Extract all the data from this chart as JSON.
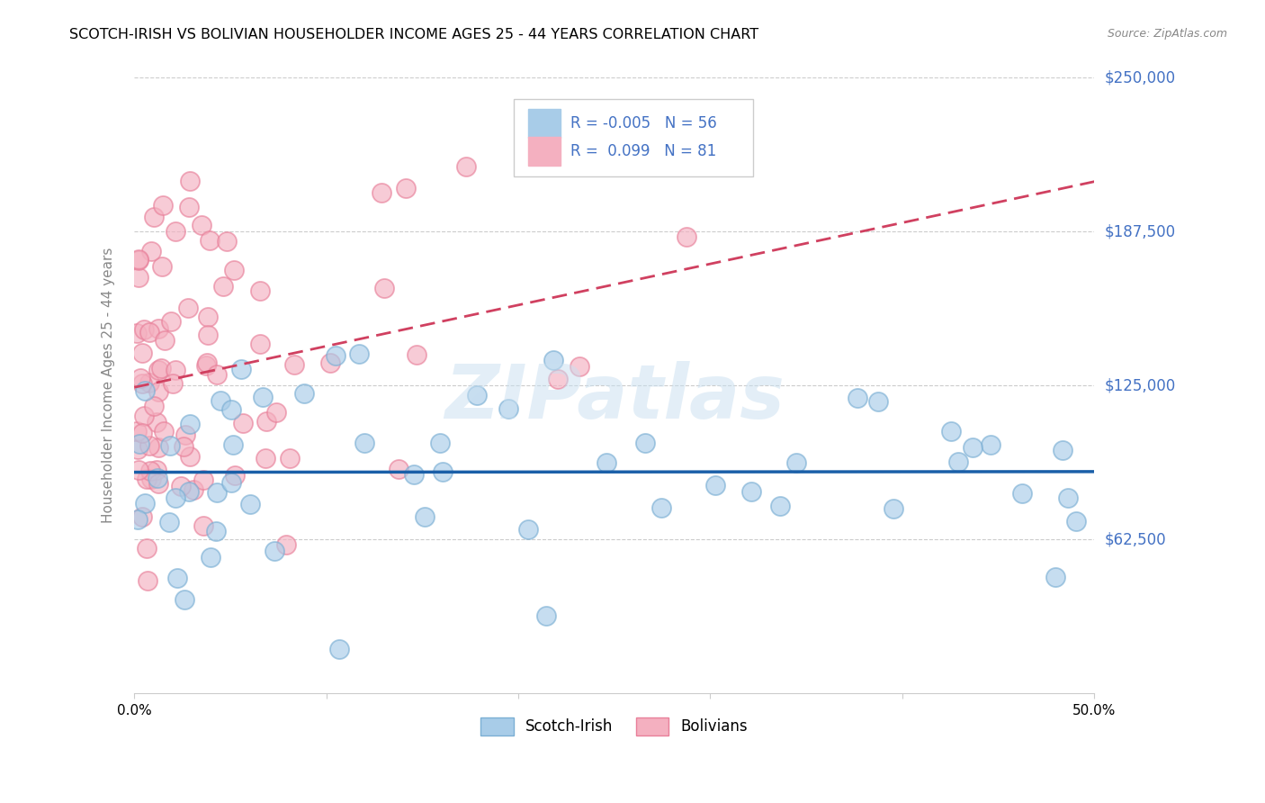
{
  "title": "SCOTCH-IRISH VS BOLIVIAN HOUSEHOLDER INCOME AGES 25 - 44 YEARS CORRELATION CHART",
  "source": "Source: ZipAtlas.com",
  "ylabel": "Householder Income Ages 25 - 44 years",
  "yticks": [
    0,
    62500,
    125000,
    187500,
    250000
  ],
  "ytick_labels": [
    "",
    "$62,500",
    "$125,000",
    "$187,500",
    "$250,000"
  ],
  "xlim": [
    0.0,
    50.0
  ],
  "ylim": [
    0,
    250000
  ],
  "watermark": "ZIPatlas",
  "scotch_irish_face": "#a8cce8",
  "scotch_irish_edge": "#7bafd4",
  "bolivian_face": "#f4b0c0",
  "bolivian_edge": "#e8809a",
  "scotch_irish_line_color": "#1a5fa8",
  "bolivian_line_color": "#d04060",
  "legend_color": "#4472C4",
  "grid_color": "#cccccc",
  "title_fontsize": 11.5,
  "axis_label_fontsize": 11,
  "tick_label_fontsize": 11,
  "legend_R1": "R = -0.005",
  "legend_N1": "N = 56",
  "legend_R2": "R =  0.099",
  "legend_N2": "N = 81",
  "si_seed": 42,
  "bv_seed": 99
}
